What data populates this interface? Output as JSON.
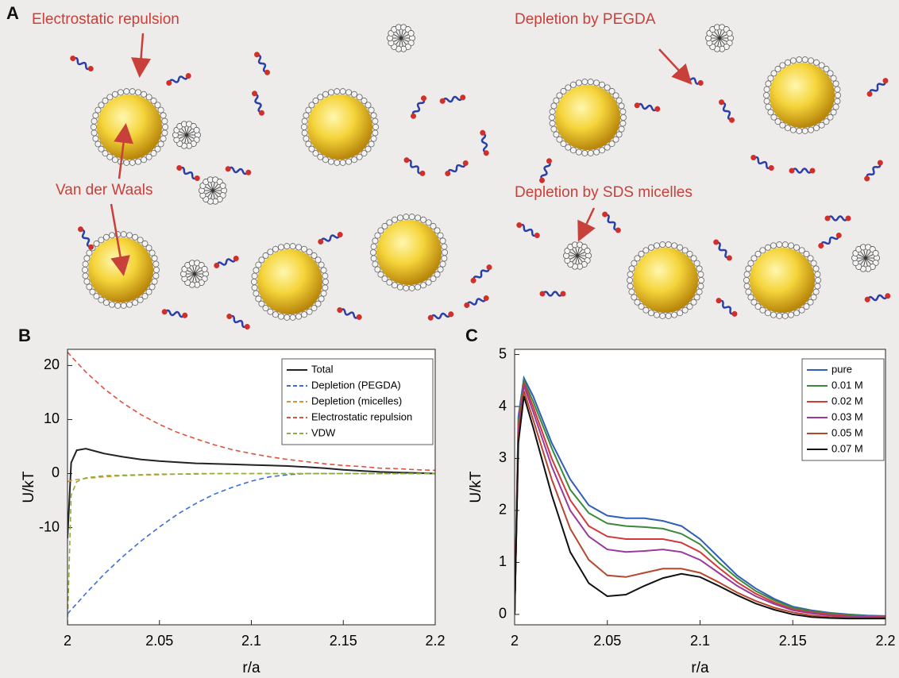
{
  "diagram": {
    "panel": "A",
    "annotations": [
      "Electrostatic repulsion",
      "Van der Waals",
      "Depletion by PEGDA",
      "Depletion by SDS micelles"
    ]
  },
  "chart_data": [
    {
      "type": "line",
      "panel": "B",
      "xlabel": "r/a",
      "ylabel": "U/kT",
      "legend": "upper right",
      "x": [
        2,
        2.002,
        2.005,
        2.01,
        2.02,
        2.03,
        2.04,
        2.05,
        2.06,
        2.07,
        2.08,
        2.09,
        2.1,
        2.11,
        2.12,
        2.13,
        2.14,
        2.15,
        2.16,
        2.17,
        2.18,
        2.19,
        2.2
      ],
      "xlim": [
        2,
        2.2
      ],
      "xticks": [
        2,
        2.05,
        2.1,
        2.15,
        2.2
      ],
      "ylim": [
        -28,
        23
      ],
      "yticks": [
        -10,
        0,
        10,
        20
      ],
      "series": [
        {
          "name": "Total",
          "color": "#222222",
          "style": "solid",
          "values": [
            -12,
            2.0,
            4.3,
            4.6,
            3.7,
            3.1,
            2.6,
            2.3,
            2.1,
            1.9,
            1.8,
            1.7,
            1.6,
            1.5,
            1.4,
            1.2,
            1.0,
            0.7,
            0.5,
            0.3,
            0.2,
            0.1,
            0
          ]
        },
        {
          "name": "Depletion (PEGDA)",
          "color": "#3a6fd8",
          "style": "dashed",
          "values": [
            -26,
            -25.2,
            -24.1,
            -22.2,
            -18.6,
            -15.4,
            -12.5,
            -9.9,
            -7.5,
            -5.5,
            -3.8,
            -2.5,
            -1.4,
            -0.6,
            -0.2,
            0,
            0,
            0,
            0,
            0,
            0,
            0,
            0
          ]
        },
        {
          "name": "Depletion (micelles)",
          "color": "#e0922a",
          "style": "dashed",
          "values": [
            -1.5,
            -1.3,
            -1.1,
            -0.9,
            -0.6,
            -0.4,
            -0.3,
            -0.2,
            -0.1,
            -0.1,
            0,
            0,
            0,
            0,
            0,
            0,
            0,
            0,
            0,
            0,
            0,
            0,
            0
          ]
        },
        {
          "name": "Electrostatic repulsion",
          "color": "#e0503a",
          "style": "dashed",
          "values": [
            22.5,
            21.7,
            20.6,
            18.8,
            15.7,
            13.1,
            10.9,
            9.1,
            7.6,
            6.4,
            5.3,
            4.4,
            3.7,
            3.1,
            2.6,
            2.2,
            1.8,
            1.5,
            1.3,
            1.0,
            0.9,
            0.7,
            0.6
          ]
        },
        {
          "name": "VDW",
          "color": "#8ab03a",
          "style": "dashed",
          "values": [
            -28,
            -4,
            -1.5,
            -0.8,
            -0.4,
            -0.3,
            -0.2,
            -0.1,
            -0.1,
            0,
            0,
            0,
            0,
            0,
            0,
            0,
            0,
            0,
            0,
            0,
            0,
            0,
            0
          ]
        }
      ]
    },
    {
      "type": "line",
      "panel": "C",
      "xlabel": "r/a",
      "ylabel": "U/kT",
      "legend": "upper right",
      "x": [
        2,
        2.002,
        2.005,
        2.01,
        2.02,
        2.03,
        2.04,
        2.05,
        2.06,
        2.07,
        2.08,
        2.09,
        2.1,
        2.11,
        2.12,
        2.13,
        2.14,
        2.15,
        2.16,
        2.17,
        2.18,
        2.19,
        2.2
      ],
      "xlim": [
        2,
        2.2
      ],
      "xticks": [
        2,
        2.05,
        2.1,
        2.15,
        2.2
      ],
      "ylim": [
        -0.2,
        5.1
      ],
      "yticks": [
        0,
        1,
        2,
        3,
        4,
        5
      ],
      "series": [
        {
          "name": "pure",
          "color": "#2f5fb8",
          "style": "solid",
          "values": [
            0,
            3.8,
            4.55,
            4.2,
            3.3,
            2.6,
            2.1,
            1.9,
            1.85,
            1.85,
            1.8,
            1.7,
            1.45,
            1.1,
            0.75,
            0.5,
            0.3,
            0.15,
            0.08,
            0.03,
            0,
            -0.02,
            -0.03
          ]
        },
        {
          "name": "0.01 M",
          "color": "#3a8a3a",
          "style": "solid",
          "values": [
            0,
            3.7,
            4.5,
            4.1,
            3.2,
            2.4,
            1.95,
            1.75,
            1.7,
            1.68,
            1.65,
            1.55,
            1.35,
            1.0,
            0.7,
            0.45,
            0.27,
            0.13,
            0.06,
            0.02,
            -0.01,
            -0.03,
            -0.04
          ]
        },
        {
          "name": "0.02 M",
          "color": "#d23a3a",
          "style": "solid",
          "values": [
            0,
            3.6,
            4.45,
            4.0,
            3.0,
            2.2,
            1.7,
            1.5,
            1.45,
            1.45,
            1.45,
            1.38,
            1.2,
            0.9,
            0.62,
            0.4,
            0.23,
            0.1,
            0.04,
            0,
            -0.03,
            -0.04,
            -0.05
          ]
        },
        {
          "name": "0.03 M",
          "color": "#9a3a9a",
          "style": "solid",
          "values": [
            0,
            3.5,
            4.4,
            3.9,
            2.85,
            2.0,
            1.5,
            1.25,
            1.2,
            1.22,
            1.25,
            1.2,
            1.05,
            0.8,
            0.55,
            0.35,
            0.2,
            0.08,
            0.02,
            -0.02,
            -0.04,
            -0.05,
            -0.06
          ]
        },
        {
          "name": "0.05 M",
          "color": "#b5472e",
          "style": "solid",
          "values": [
            0,
            3.4,
            4.3,
            3.75,
            2.6,
            1.65,
            1.05,
            0.75,
            0.72,
            0.8,
            0.88,
            0.88,
            0.8,
            0.62,
            0.42,
            0.26,
            0.13,
            0.04,
            -0.02,
            -0.05,
            -0.06,
            -0.07,
            -0.07
          ]
        },
        {
          "name": "0.07 M",
          "color": "#111111",
          "style": "solid",
          "values": [
            0,
            3.3,
            4.2,
            3.6,
            2.3,
            1.2,
            0.6,
            0.35,
            0.38,
            0.55,
            0.7,
            0.78,
            0.72,
            0.55,
            0.37,
            0.21,
            0.09,
            0.0,
            -0.05,
            -0.07,
            -0.08,
            -0.08,
            -0.08
          ]
        }
      ]
    }
  ]
}
